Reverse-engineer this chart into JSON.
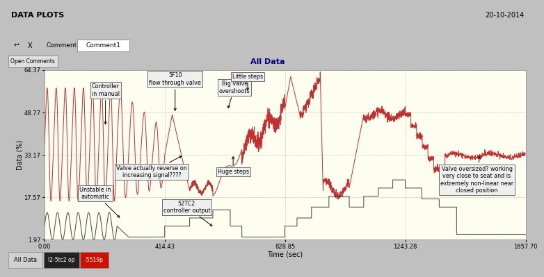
{
  "title": "All Data",
  "xlabel": "Time (sec)",
  "ylabel": "Data (%)",
  "header_title": "DATA PLOTS",
  "header_date": "20-10-2014",
  "ylim": [
    1.97,
    64.37
  ],
  "xlim": [
    0.0,
    1657.7
  ],
  "yticks": [
    1.97,
    17.57,
    33.17,
    48.77,
    64.37
  ],
  "xticks": [
    0.0,
    414.43,
    828.85,
    1243.28,
    1657.7
  ],
  "plot_bg": "#FDFDF0",
  "grid_color": "#CCCCAA",
  "red_line_color": "#C43030",
  "black_line_color": "#444444",
  "header_bg": "#A8B0B8",
  "toolbar_bg": "#C8CDD2",
  "title_bar_bg": "#D8D8D8",
  "outer_bg": "#C0C0C0",
  "ann_box_fc": "#EFEFEF",
  "ann_box_ec": "#555555",
  "comment_label": "Comment1",
  "tab_all_bg": "#D0D0D0",
  "tab2_bg": "#222222",
  "tab3_bg": "#CC1100"
}
